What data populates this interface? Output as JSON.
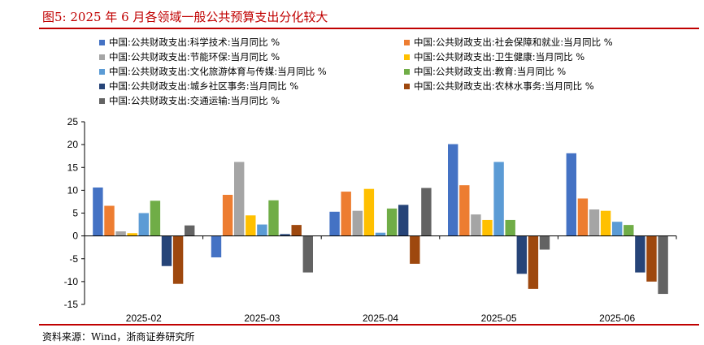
{
  "title": "图5:   2025 年 6 月各领域一般公共预算支出分化较大",
  "source": "资料来源：Wind，浙商证券研究所",
  "chart_data": {
    "type": "bar",
    "categories": [
      "2025-02",
      "2025-03",
      "2025-04",
      "2025-05",
      "2025-06"
    ],
    "ylim": [
      -15,
      25
    ],
    "yticks": [
      -15,
      -10,
      -5,
      0,
      5,
      10,
      15,
      20,
      25
    ],
    "grid": false,
    "legend_position": "top",
    "series": [
      {
        "name": "中国:公共财政支出:科学技术:当月同比 %",
        "color": "#4472c4",
        "values": [
          10.6,
          -4.7,
          5.3,
          20.1,
          18.1
        ]
      },
      {
        "name": "中国:公共财政支出:社会保障和就业:当月同比 %",
        "color": "#ed7d31",
        "values": [
          6.6,
          9.0,
          9.7,
          11.1,
          8.2
        ]
      },
      {
        "name": "中国:公共财政支出:节能环保:当月同比 %",
        "color": "#a5a5a5",
        "values": [
          1.0,
          16.2,
          5.5,
          4.7,
          5.8
        ]
      },
      {
        "name": "中国:公共财政支出:卫生健康:当月同比 %",
        "color": "#ffc000",
        "values": [
          0.6,
          4.5,
          10.3,
          3.5,
          5.5
        ]
      },
      {
        "name": "中国:公共财政支出:文化旅游体育与传媒:当月同比 %",
        "color": "#5b9bd5",
        "values": [
          5.0,
          2.5,
          0.7,
          16.2,
          3.1
        ]
      },
      {
        "name": "中国:公共财政支出:教育:当月同比 %",
        "color": "#70ad47",
        "values": [
          7.7,
          7.8,
          6.0,
          3.5,
          2.4
        ]
      },
      {
        "name": "中国:公共财政支出:城乡社区事务:当月同比 %",
        "color": "#264478",
        "values": [
          -6.6,
          0.4,
          6.8,
          -8.3,
          -8.0
        ]
      },
      {
        "name": "中国:公共财政支出:农林水事务:当月同比 %",
        "color": "#9e480e",
        "values": [
          -10.5,
          2.4,
          -6.1,
          -11.6,
          -10.0
        ]
      },
      {
        "name": "中国:公共财政支出:交通运输:当月同比 %",
        "color": "#636363",
        "values": [
          2.3,
          -8.0,
          10.5,
          -3.0,
          -12.7
        ]
      }
    ]
  }
}
